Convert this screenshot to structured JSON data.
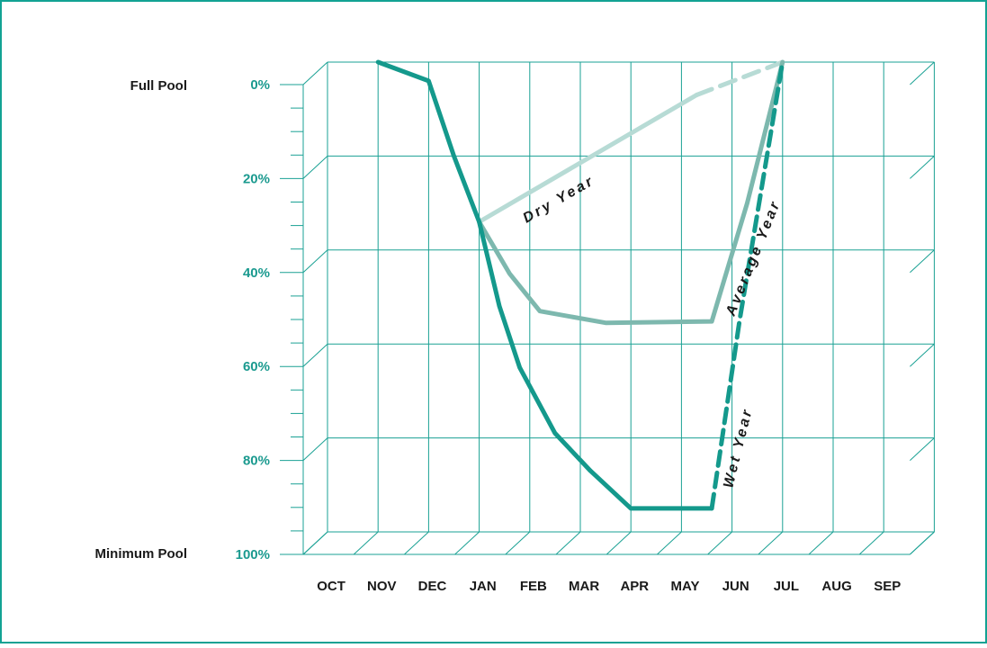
{
  "colors": {
    "border": "#12a293",
    "grid": "#1aa194",
    "tick_text": "#1b9a8f",
    "wet": "#14998c",
    "average": "#7db8ae",
    "dry": "#b7dbd5"
  },
  "chart_data": {
    "type": "line",
    "title": "",
    "xlabel": "",
    "ylabel": "",
    "y_axis": {
      "ticks": [
        "0%",
        "20%",
        "40%",
        "60%",
        "80%",
        "100%"
      ],
      "range": [
        0,
        100
      ],
      "inverted": true,
      "top_label": "Full Pool",
      "bottom_label": "Minimum Pool"
    },
    "categories": [
      "OCT",
      "NOV",
      "DEC",
      "JAN",
      "FEB",
      "MAR",
      "APR",
      "MAY",
      "JUN",
      "JUL",
      "AUG",
      "SEP"
    ],
    "grid": true,
    "series": [
      {
        "name": "Wet Year",
        "color": "#14998c",
        "drawdown": [
          [
            1.0,
            0
          ],
          [
            2.0,
            4
          ],
          [
            2.5,
            20
          ],
          [
            3.0,
            34
          ],
          [
            3.4,
            52
          ],
          [
            3.8,
            65
          ],
          [
            4.5,
            79
          ],
          [
            5.2,
            87
          ],
          [
            6.0,
            95
          ],
          [
            7.6,
            95
          ]
        ],
        "refill": [
          [
            7.6,
            95
          ],
          [
            8.15,
            55
          ],
          [
            9.0,
            0
          ]
        ],
        "refill_style": "dashed"
      },
      {
        "name": "Average Year",
        "color": "#7db8ae",
        "points": [
          [
            3.0,
            34
          ],
          [
            3.6,
            45
          ],
          [
            4.2,
            53
          ],
          [
            5.5,
            55.5
          ],
          [
            7.6,
            55.2
          ],
          [
            8.3,
            30
          ],
          [
            9.0,
            0
          ]
        ]
      },
      {
        "name": "Dry Year",
        "color": "#b7dbd5",
        "solid": [
          [
            3.0,
            34
          ],
          [
            7.3,
            7
          ]
        ],
        "dashed": [
          [
            7.3,
            7
          ],
          [
            9.0,
            0
          ]
        ]
      }
    ]
  }
}
